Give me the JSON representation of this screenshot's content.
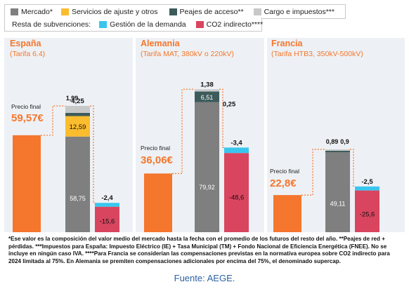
{
  "legend": {
    "items": [
      {
        "label": "Mercado*",
        "color": "#7f7f7f"
      },
      {
        "label": "Servicios de ajuste y otros",
        "color": "#fbbc2e"
      },
      {
        "label": "Peajes de acceso**",
        "color": "#3d5b5b"
      },
      {
        "label": "Cargo e impuestos***",
        "color": "#c8c8c8"
      }
    ],
    "subsidy_title": "Resta de subvenciones:",
    "subsidy_items": [
      {
        "label": "Gestión de la demanda",
        "color": "#38c6ee"
      },
      {
        "label": "CO2 indirecto****",
        "color": "#d9455f"
      }
    ]
  },
  "panels": [
    {
      "title": "España",
      "subtitle": "(Tarifa 6.4)"
    },
    {
      "title": "Alemania",
      "subtitle": "(Tarifa MAT, 380kV o 220kV)"
    },
    {
      "title": "Francia",
      "subtitle": "(Tarifa HTB3, 350kV-500kV)"
    }
  ],
  "chart_data": {
    "type": "bar",
    "categories": [
      "España",
      "Alemania",
      "Francia"
    ],
    "final_price_label": "Precio final",
    "final_prices": [
      59.57,
      36.06,
      22.8
    ],
    "final_price_texts": [
      "59,57€",
      "36,06€",
      "22,8€"
    ],
    "stack_series": [
      {
        "name": "Mercado*",
        "color": "#7f7f7f",
        "values": [
          58.75,
          79.92,
          49.11
        ],
        "labels": [
          "58,75",
          "79,92",
          "49,11"
        ]
      },
      {
        "name": "Servicios de ajuste y otros",
        "color": "#fbbc2e",
        "values": [
          12.59,
          0,
          0
        ],
        "labels": [
          "12,59",
          "",
          ""
        ]
      },
      {
        "name": "Peajes de acceso**",
        "color": "#3d5b5b",
        "values": [
          1.99,
          6.51,
          0.89
        ],
        "labels": [
          "1,99",
          "6,51",
          "0,89"
        ]
      },
      {
        "name": "Cargo e impuestos***",
        "color": "#c8c8c8",
        "values": [
          4.25,
          1.38,
          0.9
        ],
        "labels": [
          "4,25",
          "1,38",
          "0,9"
        ]
      }
    ],
    "extra_labels": [
      {
        "panel": 1,
        "text": "0,25"
      }
    ],
    "subsidy_series": [
      {
        "name": "Gestión de la demanda",
        "color": "#38c6ee",
        "values": [
          -2.4,
          -3.4,
          -2.5
        ],
        "labels": [
          "-2,4",
          "-3,4",
          "-2,5"
        ]
      },
      {
        "name": "CO2 indirecto****",
        "color": "#d9455f",
        "values": [
          -15.6,
          -48.6,
          -25.6
        ],
        "labels": [
          "-15,6",
          "-48,6",
          "-25,6"
        ]
      }
    ]
  },
  "footnote": "*Ese valor es la composición del valor medio del mercado hasta la fecha con el promedio de los futuros del resto del año. **Peajes de red + pérdidas. ***Impuestos para España: Impuesto Eléctrico (IE) + Tasa Municipal (TM) + Fondo Nacional de Eficiencia Energética (FNEE). No se incluye en ningún caso IVA. ****Para Francia se considerían las compensaciones previstas en la normativa europea sobre CO2 indirecto para 2024 limitada al 75%. En Alemania se premiten compensaciones adicionales por encima del 75%, el denominado supercap.",
  "source": "Fuente: AEGE."
}
